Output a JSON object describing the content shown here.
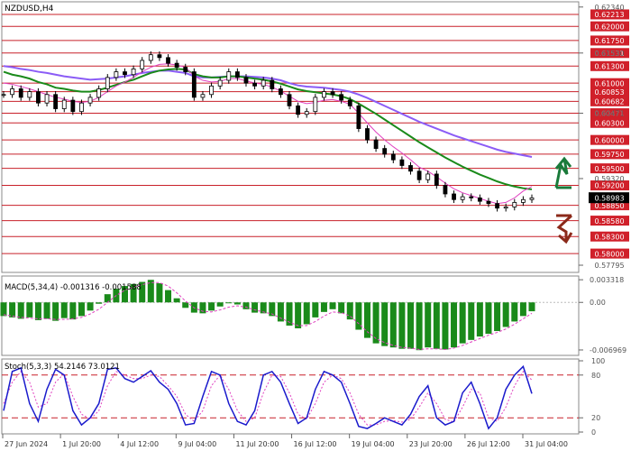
{
  "chart_data": {
    "type": "line",
    "title": "NZDUSD,H4",
    "x_ticks": [
      "27 Jun 2024",
      "1 Jul 20:00",
      "4 Jul 12:00",
      "9 Jul 04:00",
      "11 Jul 20:00",
      "16 Jul 12:00",
      "19 Jul 04:00",
      "23 Jul 20:00",
      "26 Jul 12:00",
      "31 Jul 04:00"
    ],
    "price": {
      "ylim": [
        0.577,
        0.624
      ],
      "axis_labels": [
        "0.62340",
        "0.61530",
        "0.60471",
        "0.59320",
        "0.58983",
        "0.57795"
      ],
      "levels": [
        0.6221,
        0.62,
        0.6175,
        0.6153,
        0.613,
        0.61,
        0.6085,
        0.6068,
        0.6047,
        0.603,
        0.6,
        0.5975,
        0.595,
        0.592,
        0.5885,
        0.5858,
        0.583,
        0.58
      ],
      "level_labels": [
        "0.62213",
        "0.62000",
        "0.61750",
        "0.61531",
        "0.61300",
        "0.61000",
        "0.60853",
        "0.60682",
        "0.60471",
        "0.60300",
        "0.60000",
        "0.59750",
        "0.59500",
        "0.59200",
        "0.58850",
        "0.58580",
        "0.58300",
        "0.58000"
      ],
      "current": 0.58983,
      "close_series": [
        0.608,
        0.609,
        0.6075,
        0.6085,
        0.6065,
        0.608,
        0.6055,
        0.607,
        0.605,
        0.6065,
        0.6075,
        0.609,
        0.611,
        0.612,
        0.6115,
        0.6125,
        0.614,
        0.615,
        0.6145,
        0.6135,
        0.6128,
        0.612,
        0.6075,
        0.608,
        0.6095,
        0.6105,
        0.612,
        0.611,
        0.61,
        0.6095,
        0.6105,
        0.609,
        0.608,
        0.606,
        0.6045,
        0.605,
        0.6075,
        0.6085,
        0.608,
        0.607,
        0.606,
        0.602,
        0.6,
        0.5985,
        0.5975,
        0.5965,
        0.5955,
        0.5945,
        0.593,
        0.594,
        0.592,
        0.5905,
        0.5895,
        0.59,
        0.5898,
        0.5892,
        0.5888,
        0.588,
        0.5882,
        0.589,
        0.5895,
        0.5898
      ],
      "series": [
        {
          "name": "",
          "color": "#8b5cf6",
          "values": [
            0.613,
            0.6128,
            0.6125,
            0.6123,
            0.612,
            0.6118,
            0.6115,
            0.6112,
            0.611,
            0.6108,
            0.6106,
            0.6107,
            0.6108,
            0.611,
            0.6112,
            0.6115,
            0.6118,
            0.612,
            0.6122,
            0.6122,
            0.612,
            0.6118,
            0.6112,
            0.611,
            0.611,
            0.6111,
            0.6112,
            0.6112,
            0.6112,
            0.6111,
            0.611,
            0.6108,
            0.6105,
            0.61,
            0.6096,
            0.6094,
            0.6093,
            0.6092,
            0.609,
            0.6088,
            0.6085,
            0.608,
            0.6074,
            0.6067,
            0.606,
            0.6053,
            0.6046,
            0.6039,
            0.6032,
            0.6026,
            0.602,
            0.6014,
            0.6008,
            0.6003,
            0.5998,
            0.5993,
            0.5988,
            0.5983,
            0.5979,
            0.5976,
            0.5973,
            0.597
          ]
        },
        {
          "name": "",
          "color": "#1a8a1a",
          "values": [
            0.612,
            0.6115,
            0.6112,
            0.6108,
            0.6102,
            0.6098,
            0.6092,
            0.609,
            0.6087,
            0.6085,
            0.6085,
            0.6088,
            0.6092,
            0.6097,
            0.6102,
            0.6106,
            0.6112,
            0.6118,
            0.6122,
            0.6124,
            0.6125,
            0.6124,
            0.6116,
            0.6112,
            0.611,
            0.611,
            0.6112,
            0.6112,
            0.611,
            0.6108,
            0.6106,
            0.6103,
            0.6099,
            0.6094,
            0.6089,
            0.6086,
            0.6084,
            0.6082,
            0.608,
            0.6077,
            0.6072,
            0.6064,
            0.6055,
            0.6046,
            0.6036,
            0.6026,
            0.6016,
            0.6006,
            0.5996,
            0.5987,
            0.5978,
            0.5969,
            0.5961,
            0.5953,
            0.5946,
            0.5939,
            0.5933,
            0.5927,
            0.5922,
            0.5918,
            0.5915,
            0.5913
          ]
        },
        {
          "name": "",
          "color": "#e040c0",
          "values": [
            0.61,
            0.6098,
            0.6094,
            0.609,
            0.6085,
            0.608,
            0.6075,
            0.6072,
            0.6068,
            0.6066,
            0.6068,
            0.6075,
            0.6085,
            0.6095,
            0.6102,
            0.611,
            0.612,
            0.6128,
            0.6133,
            0.6134,
            0.6132,
            0.6128,
            0.6112,
            0.6105,
            0.6102,
            0.6103,
            0.6108,
            0.6108,
            0.6104,
            0.61,
            0.6098,
            0.6093,
            0.6086,
            0.6077,
            0.6068,
            0.6064,
            0.6066,
            0.607,
            0.6071,
            0.6068,
            0.6063,
            0.6047,
            0.603,
            0.6014,
            0.6,
            0.5988,
            0.5977,
            0.5965,
            0.5952,
            0.5945,
            0.5935,
            0.5924,
            0.5914,
            0.5907,
            0.5902,
            0.5897,
            0.5892,
            0.5888,
            0.589,
            0.5898,
            0.591,
            0.5918
          ]
        }
      ]
    },
    "macd": {
      "label": "MACD(5,34,4) -0.001316 -0.001588",
      "ylim": [
        -0.0075,
        0.0036
      ],
      "axis_labels": [
        "0.003318",
        "0.00",
        "-0.006969"
      ],
      "axis_values": [
        0.003318,
        0.0,
        -0.006969
      ],
      "histogram": [
        -0.002,
        -0.0022,
        -0.0024,
        -0.0022,
        -0.0026,
        -0.0024,
        -0.0027,
        -0.0023,
        -0.0025,
        -0.002,
        -0.0012,
        -0.0002,
        0.0012,
        0.002,
        0.0024,
        0.0027,
        0.003,
        0.0033,
        0.0028,
        0.0018,
        0.0006,
        -0.0008,
        -0.0015,
        -0.0016,
        -0.0012,
        -0.0006,
        -0.0001,
        -0.0003,
        -0.001,
        -0.0015,
        -0.0016,
        -0.002,
        -0.0028,
        -0.0034,
        -0.0038,
        -0.0032,
        -0.0022,
        -0.0014,
        -0.001,
        -0.0016,
        -0.0025,
        -0.004,
        -0.0052,
        -0.006,
        -0.0064,
        -0.0066,
        -0.0068,
        -0.0068,
        -0.007,
        -0.0066,
        -0.0068,
        -0.0069,
        -0.0066,
        -0.006,
        -0.0055,
        -0.005,
        -0.0046,
        -0.0042,
        -0.0036,
        -0.0028,
        -0.002,
        -0.0013
      ],
      "signal": [
        -0.0018,
        -0.002,
        -0.0022,
        -0.0023,
        -0.0024,
        -0.0024,
        -0.0025,
        -0.0025,
        -0.0024,
        -0.0022,
        -0.0017,
        -0.001,
        0.0,
        0.001,
        0.0018,
        0.0022,
        0.0026,
        0.0029,
        0.0029,
        0.0024,
        0.0014,
        0.0002,
        -0.0008,
        -0.0013,
        -0.0014,
        -0.0011,
        -0.0007,
        -0.0005,
        -0.0007,
        -0.0011,
        -0.0014,
        -0.0017,
        -0.0023,
        -0.0029,
        -0.0034,
        -0.0034,
        -0.0028,
        -0.002,
        -0.0014,
        -0.0015,
        -0.002,
        -0.0031,
        -0.0043,
        -0.0053,
        -0.0059,
        -0.0063,
        -0.0066,
        -0.0067,
        -0.0069,
        -0.0068,
        -0.0068,
        -0.0069,
        -0.0067,
        -0.0063,
        -0.0058,
        -0.0053,
        -0.0048,
        -0.0044,
        -0.0039,
        -0.0032,
        -0.0024,
        -0.0016
      ]
    },
    "stochastic": {
      "label": "Stoch(5,3,3) 54.2146 73.0121",
      "ylim": [
        0,
        100
      ],
      "axis_labels": [
        "100",
        "80",
        "20",
        "0"
      ],
      "axis_values": [
        100,
        80,
        20,
        0
      ],
      "levels": [
        80,
        20
      ],
      "k": [
        30,
        85,
        90,
        40,
        15,
        60,
        88,
        80,
        30,
        10,
        20,
        40,
        88,
        90,
        75,
        70,
        78,
        86,
        70,
        60,
        40,
        10,
        12,
        50,
        85,
        80,
        40,
        15,
        10,
        30,
        80,
        85,
        70,
        40,
        12,
        20,
        60,
        85,
        80,
        70,
        40,
        8,
        5,
        12,
        20,
        15,
        10,
        25,
        50,
        65,
        20,
        10,
        15,
        55,
        70,
        40,
        5,
        20,
        60,
        80,
        92,
        54
      ],
      "d": [
        40,
        70,
        85,
        70,
        35,
        40,
        70,
        82,
        50,
        25,
        18,
        30,
        65,
        85,
        80,
        75,
        75,
        80,
        78,
        65,
        50,
        25,
        15,
        30,
        65,
        80,
        60,
        30,
        15,
        20,
        55,
        80,
        78,
        55,
        25,
        18,
        40,
        70,
        80,
        75,
        55,
        25,
        10,
        10,
        15,
        16,
        14,
        18,
        35,
        55,
        40,
        18,
        14,
        35,
        60,
        55,
        20,
        15,
        35,
        65,
        85,
        73
      ]
    }
  }
}
